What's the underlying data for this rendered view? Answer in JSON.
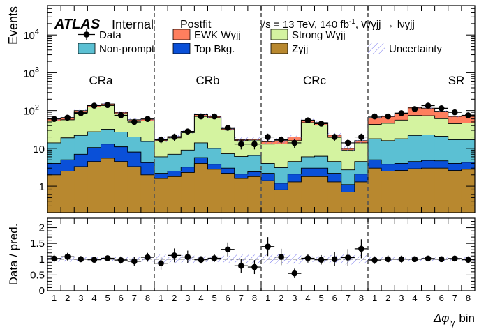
{
  "chart_data": [
    {
      "type": "bar",
      "stacked": true,
      "yscale": "log",
      "ylabel": "Events",
      "ylim": [
        0.2,
        60000
      ],
      "yticks": [
        {
          "value": 1,
          "label": "1"
        },
        {
          "value": 10,
          "label": "10"
        },
        {
          "value": 100,
          "label": "10",
          "sup": "2"
        },
        {
          "value": 1000,
          "label": "10",
          "sup": "3"
        },
        {
          "value": 10000,
          "label": "10",
          "sup": "4"
        }
      ],
      "labels": {
        "atlas": "ATLAS",
        "internal": "Internal",
        "postfit": "Postfit",
        "energy": "√s = 13 TeV, 140 fb",
        "energy_sup": "-1",
        "process": ", Wγjj → lνγjj"
      },
      "regions": [
        "CRa",
        "CRb",
        "CRc",
        "SR"
      ],
      "bins_per_region": 8,
      "categories": [
        "1",
        "2",
        "3",
        "4",
        "5",
        "6",
        "7",
        "8",
        "1",
        "2",
        "3",
        "4",
        "5",
        "6",
        "7",
        "8",
        "1",
        "2",
        "3",
        "4",
        "5",
        "6",
        "7",
        "8",
        "1",
        "2",
        "3",
        "4",
        "5",
        "6",
        "7",
        "8"
      ],
      "legend": [
        {
          "name": "Data",
          "marker": "point"
        },
        {
          "name": "EWK Wγjj",
          "color": "#ff7f5e"
        },
        {
          "name": "Strong Wγjj",
          "color": "#d4f3a0"
        },
        {
          "name": "Non-prompt",
          "color": "#5bc0d3"
        },
        {
          "name": "Top Bkg.",
          "color": "#0a50d8"
        },
        {
          "name": "Zγjj",
          "color": "#b8882f"
        },
        {
          "name": "Uncertainty",
          "hatch": "#7070ee"
        }
      ],
      "series": [
        {
          "name": "Zγjj",
          "color": "#b8882f",
          "values": [
            2.0,
            2.5,
            3.3,
            4.5,
            5.5,
            4.5,
            3.3,
            2.0,
            1.6,
            1.8,
            2.3,
            4.0,
            2.8,
            2.2,
            1.6,
            1.8,
            1.4,
            0.8,
            1.3,
            1.8,
            1.8,
            1.3,
            0.7,
            1.3,
            3.0,
            2.5,
            2.6,
            2.9,
            3.0,
            3.0,
            2.6,
            2.8
          ]
        },
        {
          "name": "Top Bkg.",
          "color": "#0a50d8",
          "values": [
            2.0,
            2.5,
            3.7,
            6.0,
            7.5,
            6.5,
            4.7,
            2.2,
            0.6,
            0.7,
            0.9,
            1.7,
            1.0,
            0.8,
            0.5,
            0.6,
            0.8,
            0.4,
            0.8,
            1.2,
            1.2,
            0.9,
            0.4,
            0.8,
            2.0,
            1.3,
            1.4,
            1.6,
            1.8,
            1.7,
            1.4,
            1.5
          ]
        },
        {
          "name": "Non-prompt",
          "color": "#5bc0d3",
          "values": [
            10,
            14,
            15,
            17,
            19,
            16,
            12,
            11,
            3.8,
            4.5,
            5.8,
            8.3,
            6.2,
            4.2,
            4.0,
            4.1,
            1.8,
            1.9,
            2.4,
            3.0,
            3.2,
            2.3,
            1.6,
            2.4,
            13,
            12.2,
            14,
            17.5,
            18,
            16.3,
            13,
            12.7
          ]
        },
        {
          "name": "Strong Wγjj",
          "color": "#d4f3a0",
          "values": [
            39,
            38,
            67,
            97,
            104,
            56,
            33,
            38,
            10,
            12,
            17,
            57,
            55,
            24,
            10,
            10,
            9,
            10,
            11.5,
            42,
            35,
            15,
            6.3,
            9.5,
            25,
            30,
            38,
            52,
            50,
            40,
            28,
            30
          ]
        },
        {
          "name": "EWK Wγjj",
          "color": "#ff7f5e",
          "values": [
            7,
            8,
            11,
            15,
            14,
            7,
            4,
            6,
            1,
            1.5,
            2,
            7,
            5,
            2,
            1,
            1,
            2,
            3,
            4,
            8,
            7,
            3,
            1,
            2,
            22,
            24,
            30,
            47,
            43,
            35,
            25,
            25
          ]
        }
      ],
      "data_points": [
        60,
        65,
        85,
        135,
        140,
        75,
        50,
        60,
        17,
        20,
        28,
        70,
        70,
        35,
        13,
        13,
        20,
        17,
        14,
        55,
        45,
        20,
        14,
        20,
        70,
        70,
        85,
        110,
        135,
        115,
        90,
        75
      ],
      "data_errors": [
        8,
        8,
        9,
        12,
        12,
        9,
        7,
        8,
        4,
        4.5,
        5,
        8,
        8,
        6,
        3.6,
        3.6,
        4.5,
        4,
        3.7,
        7,
        7,
        4.5,
        3.7,
        4.5,
        8.4,
        8.4,
        9.2,
        10.5,
        11.6,
        10.7,
        9.5,
        8.7
      ]
    },
    {
      "type": "scatter",
      "ylabel": "Data / pred.",
      "xlabel": "Δφ",
      "xlabel_sub": "lγ",
      "xlabel_unit": "bin",
      "ylim": [
        0,
        2.3
      ],
      "yticks": [
        {
          "value": 0,
          "label": "0"
        },
        {
          "value": 0.5,
          "label": "0.5"
        },
        {
          "value": 1,
          "label": "1"
        },
        {
          "value": 1.5,
          "label": "1.5"
        },
        {
          "value": 2,
          "label": "2"
        }
      ],
      "reference_line": 1,
      "uncertainty_band": [
        0.08,
        0.08,
        0.07,
        0.06,
        0.06,
        0.07,
        0.08,
        0.08,
        0.14,
        0.13,
        0.12,
        0.09,
        0.09,
        0.11,
        0.14,
        0.14,
        0.14,
        0.15,
        0.15,
        0.09,
        0.1,
        0.13,
        0.17,
        0.14,
        0.06,
        0.06,
        0.06,
        0.05,
        0.05,
        0.05,
        0.06,
        0.06
      ],
      "values": [
        1.02,
        1.08,
        1.0,
        0.98,
        1.03,
        0.97,
        0.93,
        1.06,
        0.87,
        1.12,
        1.07,
        0.98,
        1.03,
        1.31,
        0.79,
        0.75,
        1.4,
        1.07,
        0.55,
        1.03,
        0.98,
        1.0,
        1.05,
        1.33,
        0.97,
        1.0,
        1.0,
        1.0,
        1.02,
        1.0,
        1.02,
        0.98
      ],
      "errors": [
        0.12,
        0.12,
        0.1,
        0.09,
        0.09,
        0.12,
        0.14,
        0.14,
        0.2,
        0.22,
        0.2,
        0.12,
        0.12,
        0.22,
        0.22,
        0.22,
        0.3,
        0.26,
        0.15,
        0.14,
        0.15,
        0.22,
        0.27,
        0.3,
        0.12,
        0.12,
        0.11,
        0.09,
        0.09,
        0.09,
        0.1,
        0.11
      ]
    }
  ]
}
